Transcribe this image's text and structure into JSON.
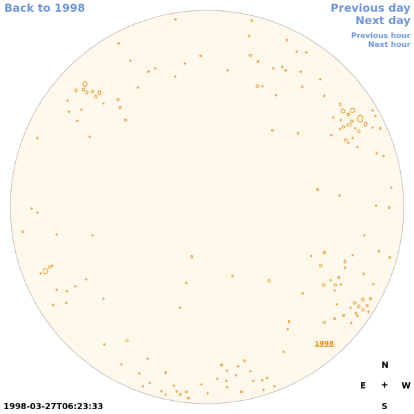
{
  "nav": {
    "back_label": "Back to 1998",
    "previous_day_label": "Previous day",
    "next_day_label": "Next day",
    "previous_hour_label": "Previous hour",
    "next_hour_label": "Next hour"
  },
  "compass": {
    "north": "N",
    "east": "E",
    "center": "+",
    "west": "W",
    "south": "S"
  },
  "timestamp": "1998-03-27T06:23:33",
  "region_label": "1998",
  "colors": {
    "link": "#6f95dc",
    "disk_fill": "#fff8eb",
    "disk_outline": "#bbbbbb",
    "contour": "#e08a10"
  }
}
